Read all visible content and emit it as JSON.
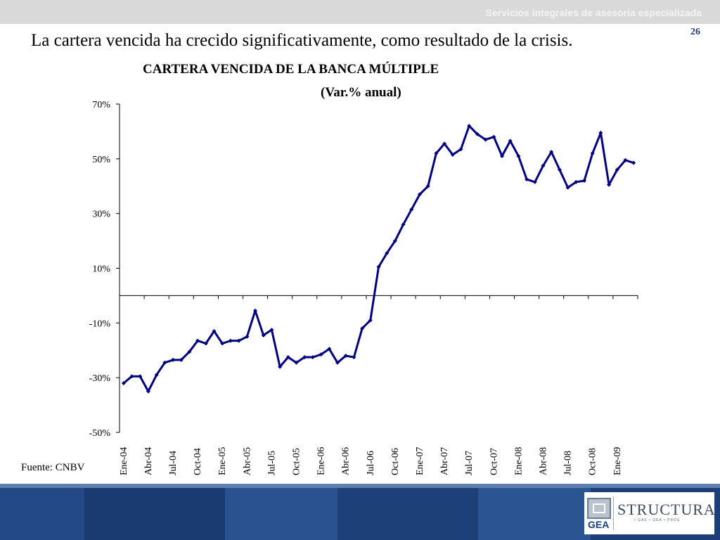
{
  "header": {
    "company": "Servicios integrales de asesoría especializada",
    "page_number": "26"
  },
  "slide": {
    "title": "La cartera vencida ha crecido significativamente, como resultado de la crisis.",
    "source": "Fuente: CNBV"
  },
  "logo": {
    "mark_text": "GEA",
    "brand": "STRUCTURA",
    "sub": "• GAE • GEA • PROS"
  },
  "colors": {
    "series": "#000080",
    "topbar": "#d9d9d9",
    "footer": "#1c3f78"
  },
  "chart_data": {
    "type": "line",
    "title": "CARTERA VENCIDA DE LA BANCA MÚLTIPLE",
    "subtitle": "(Var.% anual)",
    "ylim": [
      -50,
      70
    ],
    "yticks": [
      70,
      50,
      30,
      10,
      -10,
      -30,
      -50
    ],
    "ytick_labels": [
      "70%",
      "50%",
      "30%",
      "10%",
      "-10%",
      "-30%",
      "-50%"
    ],
    "x_tick_labels": [
      "Ene-04",
      "Abr-04",
      "Jul-04",
      "Oct-04",
      "Ene-05",
      "Abr-05",
      "Jul-05",
      "Oct-05",
      "Ene-06",
      "Abr-06",
      "Jul-06",
      "Oct-06",
      "Ene-07",
      "Abr-07",
      "Jul-07",
      "Oct-07",
      "Ene-08",
      "Abr-08",
      "Jul-08",
      "Oct-08",
      "Ene-09"
    ],
    "x_tick_step": 3,
    "grid": false,
    "legend": "none",
    "series": [
      {
        "values": [
          -32,
          -29.5,
          -29.5,
          -35,
          -29,
          -24.5,
          -23.5,
          -23.5,
          -20.5,
          -16.5,
          -17.5,
          -13,
          -17.5,
          -16.5,
          -16.5,
          -15,
          -5.5,
          -14.5,
          -12.5,
          -26,
          -22.5,
          -24.5,
          -22.5,
          -22.5,
          -21.5,
          -19.5,
          -24.5,
          -22,
          -22.5,
          -12,
          -9,
          10.5,
          15.5,
          20,
          26,
          31.5,
          37,
          40,
          52,
          55.5,
          51.5,
          53.5,
          62,
          59,
          57,
          58,
          51,
          56.5,
          51,
          42.5,
          41.5,
          47.5,
          52.5,
          46,
          39.5,
          41.5,
          42,
          52,
          59.5,
          40.5,
          46,
          49.5,
          48.5
        ]
      }
    ]
  }
}
